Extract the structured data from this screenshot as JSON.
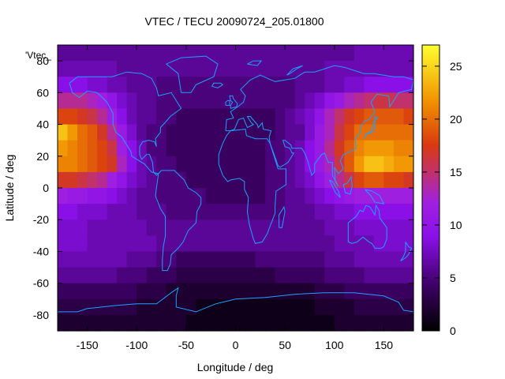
{
  "chart_data": {
    "type": "heatmap",
    "title": "VTEC / TECU 20090724_205.01800",
    "xlabel": "Longitude / deg",
    "ylabel": "Latitude / deg",
    "key_label": "'Vtec_",
    "xlim": [
      -180,
      180
    ],
    "ylim": [
      -90,
      90
    ],
    "x_ticks": [
      -150,
      -100,
      -50,
      0,
      50,
      100,
      150
    ],
    "y_ticks": [
      -80,
      -60,
      -40,
      -20,
      0,
      20,
      40,
      60,
      80
    ],
    "colorbar": {
      "range": [
        0,
        27
      ],
      "ticks": [
        0,
        5,
        10,
        15,
        20,
        25
      ]
    },
    "grid": false,
    "data_grid": {
      "lon_step_deg": 10,
      "lat_step_deg": 10,
      "lon_start": -180,
      "lat_start": 90,
      "values_tecu_rows_north_to_south": [
        [
          6,
          6,
          6,
          6,
          6,
          6,
          6,
          6,
          6,
          6,
          6,
          6,
          6,
          6,
          6,
          6,
          6,
          6,
          6,
          6,
          6,
          6,
          6,
          6,
          6,
          6,
          6,
          6,
          6,
          6,
          7,
          7,
          7,
          7,
          7,
          7
        ],
        [
          7,
          7,
          7,
          7,
          7,
          7,
          6,
          6,
          6,
          6,
          6,
          6,
          6,
          6,
          6,
          6,
          6,
          6,
          6,
          6,
          6,
          6,
          6,
          6,
          6,
          6,
          6,
          7,
          7,
          7,
          7,
          7,
          7,
          7,
          7,
          7
        ],
        [
          9,
          9,
          9,
          8,
          8,
          7,
          7,
          6,
          6,
          6,
          5,
          5,
          5,
          5,
          5,
          5,
          5,
          5,
          5,
          5,
          5,
          5,
          5,
          5,
          6,
          6,
          6,
          7,
          7,
          8,
          8,
          9,
          9,
          9,
          9,
          9
        ],
        [
          14,
          14,
          14,
          13,
          12,
          10,
          8,
          7,
          6,
          6,
          5,
          5,
          5,
          5,
          5,
          5,
          5,
          5,
          5,
          5,
          5,
          5,
          5,
          5,
          6,
          7,
          8,
          10,
          11,
          13,
          14,
          15,
          16,
          16,
          15,
          15
        ],
        [
          18,
          18,
          17,
          16,
          14,
          12,
          9,
          7,
          6,
          6,
          5,
          5,
          4,
          4,
          4,
          4,
          4,
          4,
          4,
          4,
          4,
          4,
          5,
          6,
          7,
          8,
          10,
          13,
          15,
          17,
          18,
          19,
          19,
          19,
          19,
          18
        ],
        [
          24,
          22,
          20,
          19,
          17,
          14,
          11,
          8,
          6,
          5,
          5,
          4,
          4,
          4,
          4,
          4,
          4,
          4,
          4,
          4,
          4,
          4,
          5,
          6,
          6,
          8,
          11,
          13,
          16,
          18,
          20,
          20,
          20,
          20,
          20,
          20
        ],
        [
          22,
          21,
          20,
          19,
          18,
          16,
          12,
          9,
          7,
          5,
          5,
          4,
          4,
          4,
          4,
          4,
          4,
          4,
          4,
          4,
          4,
          5,
          5,
          6,
          7,
          9,
          11,
          14,
          17,
          19,
          21,
          22,
          22,
          22,
          21,
          21
        ],
        [
          21,
          21,
          20,
          19,
          18,
          17,
          13,
          9,
          7,
          6,
          5,
          5,
          4,
          4,
          4,
          4,
          4,
          4,
          4,
          4,
          4,
          5,
          5,
          6,
          7,
          9,
          11,
          13,
          16,
          19,
          22,
          24,
          24,
          23,
          22,
          22
        ],
        [
          17,
          17,
          16,
          15,
          14,
          12,
          10,
          8,
          7,
          6,
          5,
          5,
          5,
          4,
          4,
          4,
          4,
          4,
          4,
          4,
          4,
          5,
          5,
          6,
          7,
          8,
          10,
          12,
          14,
          16,
          18,
          19,
          19,
          18,
          18,
          17
        ],
        [
          12,
          11,
          11,
          10,
          10,
          9,
          8,
          7,
          6,
          6,
          5,
          5,
          5,
          5,
          5,
          4,
          4,
          4,
          4,
          4,
          4,
          5,
          5,
          6,
          6,
          7,
          8,
          9,
          10,
          11,
          12,
          12,
          12,
          12,
          12,
          12
        ],
        [
          9,
          9,
          8,
          8,
          8,
          7,
          7,
          7,
          6,
          6,
          6,
          5,
          5,
          5,
          5,
          5,
          5,
          5,
          5,
          5,
          5,
          5,
          5,
          6,
          6,
          6,
          7,
          7,
          8,
          8,
          9,
          9,
          9,
          9,
          9,
          9
        ],
        [
          8,
          8,
          8,
          7,
          7,
          7,
          7,
          7,
          7,
          6,
          6,
          6,
          6,
          6,
          6,
          6,
          6,
          6,
          6,
          6,
          6,
          6,
          6,
          6,
          6,
          6,
          6,
          7,
          7,
          7,
          8,
          8,
          8,
          8,
          8,
          8
        ],
        [
          8,
          8,
          8,
          7,
          7,
          7,
          7,
          7,
          7,
          7,
          6,
          6,
          6,
          6,
          6,
          6,
          6,
          6,
          6,
          6,
          6,
          6,
          6,
          6,
          6,
          6,
          6,
          6,
          7,
          7,
          7,
          7,
          8,
          8,
          8,
          8
        ],
        [
          7,
          7,
          7,
          7,
          7,
          7,
          7,
          6,
          6,
          6,
          5,
          5,
          4,
          4,
          4,
          4,
          4,
          4,
          4,
          4,
          5,
          5,
          5,
          5,
          5,
          5,
          5,
          6,
          6,
          6,
          7,
          7,
          7,
          7,
          7,
          7
        ],
        [
          6,
          6,
          6,
          6,
          6,
          6,
          5,
          5,
          5,
          4,
          4,
          4,
          3,
          3,
          3,
          3,
          3,
          3,
          3,
          3,
          3,
          3,
          4,
          4,
          4,
          4,
          4,
          5,
          5,
          5,
          5,
          6,
          6,
          6,
          6,
          6
        ],
        [
          4,
          4,
          4,
          4,
          4,
          4,
          4,
          4,
          3,
          3,
          3,
          2,
          2,
          2,
          2,
          2,
          2,
          2,
          2,
          2,
          2,
          2,
          2,
          2,
          2,
          2,
          3,
          3,
          3,
          4,
          4,
          4,
          4,
          4,
          4,
          4
        ],
        [
          3,
          3,
          3,
          3,
          3,
          3,
          3,
          3,
          2,
          2,
          2,
          2,
          2,
          2,
          1,
          1,
          1,
          1,
          1,
          1,
          1,
          1,
          1,
          1,
          1,
          1,
          2,
          2,
          2,
          2,
          3,
          3,
          3,
          3,
          3,
          3
        ],
        [
          2,
          2,
          2,
          2,
          2,
          2,
          2,
          2,
          2,
          2,
          2,
          2,
          2,
          1,
          1,
          1,
          1,
          1,
          1,
          1,
          1,
          1,
          1,
          1,
          1,
          1,
          1,
          1,
          2,
          2,
          2,
          2,
          2,
          2,
          2,
          2
        ]
      ]
    }
  }
}
